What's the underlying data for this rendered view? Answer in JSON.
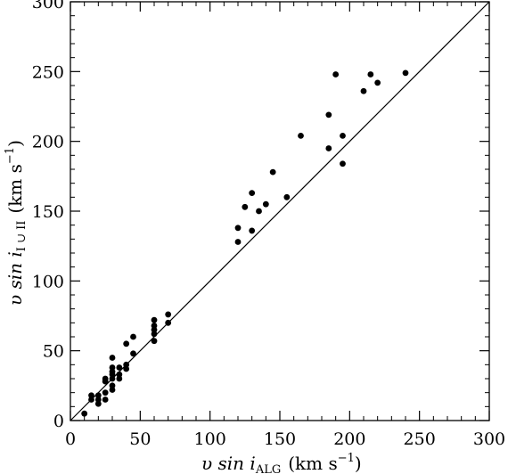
{
  "chart_data": {
    "type": "scatter",
    "title": "",
    "xlabel": "υ sin i_ALG (km s⁻¹)",
    "ylabel": "υ sin i_I∪II (km s⁻¹)",
    "x_label_parts": {
      "main": "υ  sin  i",
      "sub": "ALG",
      "units": "(km  s",
      "exp": "−1",
      "close": ")"
    },
    "y_label_parts": {
      "main": "υ  sin  i",
      "sub": "I ∪ II",
      "units": "(km  s",
      "exp": "−1",
      "close": ")"
    },
    "xlim": [
      0,
      300
    ],
    "ylim": [
      0,
      300
    ],
    "xticks": [
      0,
      50,
      100,
      150,
      200,
      250,
      300
    ],
    "yticks": [
      0,
      50,
      100,
      150,
      200,
      250,
      300
    ],
    "xtick_labels": [
      "0",
      "50",
      "100",
      "150",
      "200",
      "250",
      "300"
    ],
    "ytick_labels": [
      "0",
      "50",
      "100",
      "150",
      "200",
      "250",
      "300"
    ],
    "minor_tick_step": 10,
    "grid": false,
    "reference_line": {
      "from": [
        0,
        0
      ],
      "to": [
        300,
        300
      ]
    },
    "series": [
      {
        "points": [
          [
            10,
            5
          ],
          [
            15,
            15
          ],
          [
            15,
            18
          ],
          [
            20,
            12
          ],
          [
            20,
            15
          ],
          [
            20,
            18
          ],
          [
            25,
            15
          ],
          [
            25,
            20
          ],
          [
            25,
            28
          ],
          [
            25,
            30
          ],
          [
            30,
            22
          ],
          [
            30,
            25
          ],
          [
            30,
            30
          ],
          [
            30,
            33
          ],
          [
            30,
            35
          ],
          [
            30,
            38
          ],
          [
            30,
            45
          ],
          [
            35,
            30
          ],
          [
            35,
            33
          ],
          [
            35,
            38
          ],
          [
            40,
            37
          ],
          [
            40,
            40
          ],
          [
            40,
            55
          ],
          [
            45,
            48
          ],
          [
            45,
            60
          ],
          [
            60,
            57
          ],
          [
            60,
            62
          ],
          [
            60,
            65
          ],
          [
            60,
            68
          ],
          [
            60,
            72
          ],
          [
            70,
            70
          ],
          [
            70,
            76
          ],
          [
            120,
            128
          ],
          [
            120,
            138
          ],
          [
            125,
            153
          ],
          [
            130,
            136
          ],
          [
            130,
            163
          ],
          [
            135,
            150
          ],
          [
            140,
            155
          ],
          [
            145,
            178
          ],
          [
            155,
            160
          ],
          [
            165,
            204
          ],
          [
            185,
            195
          ],
          [
            185,
            219
          ],
          [
            190,
            248
          ],
          [
            195,
            184
          ],
          [
            195,
            204
          ],
          [
            210,
            236
          ],
          [
            215,
            248
          ],
          [
            220,
            242
          ],
          [
            240,
            249
          ]
        ]
      }
    ]
  }
}
